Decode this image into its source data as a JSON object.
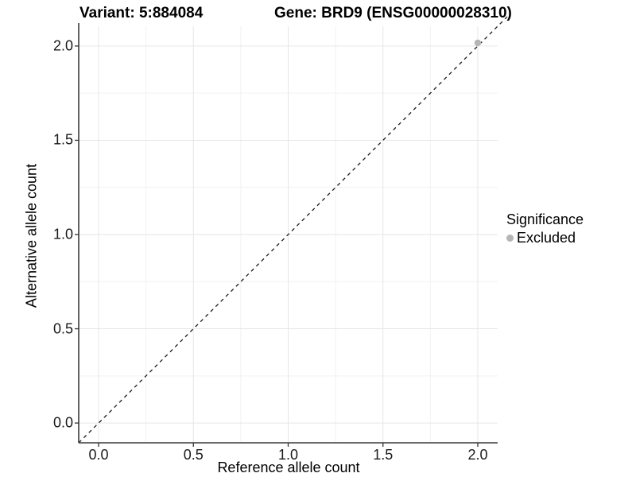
{
  "chart_data": {
    "type": "scatter",
    "title_left": "Variant: 5:884084",
    "title_right": "Gene: BRD9 (ENSG00000028310)",
    "xlabel": "Reference allele count",
    "ylabel": "Alternative allele count",
    "xlim": [
      -0.105,
      2.105
    ],
    "ylim": [
      -0.105,
      2.105
    ],
    "x_ticks": [
      0.0,
      0.5,
      1.0,
      1.5,
      2.0
    ],
    "y_ticks": [
      0.0,
      0.5,
      1.0,
      1.5,
      2.0
    ],
    "x_minor_ticks": [
      0.25,
      0.75,
      1.25,
      1.75
    ],
    "y_minor_ticks": [
      0.25,
      0.75,
      1.25,
      1.75
    ],
    "tick_label_format": "one-decimal",
    "grid": {
      "major_color": "#e6e6e6",
      "minor_color": "#f2f2f2",
      "visible": true
    },
    "axis_line_color": "#3c3c3c",
    "tick_mark_color": "#333333",
    "reference_line": {
      "kind": "identity",
      "slope": 1,
      "intercept": 0,
      "style": "dashed",
      "color": "#1a1a1a",
      "clipped": false
    },
    "series": [
      {
        "name": "Excluded",
        "color": "#b5b5b5",
        "points": [
          {
            "x": 2.0,
            "y": 2.0
          }
        ]
      }
    ],
    "legend": {
      "position": "right",
      "title": "Significance",
      "items": [
        {
          "label": "Excluded",
          "color": "#b5b5b5"
        }
      ]
    }
  }
}
